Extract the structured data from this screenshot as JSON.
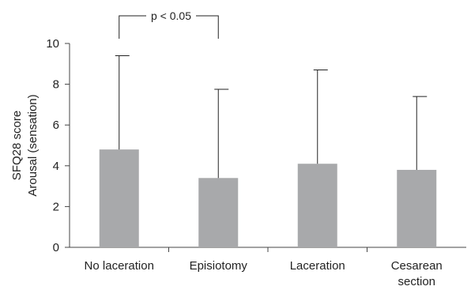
{
  "chart_data": {
    "type": "bar",
    "categories": [
      [
        "No laceration"
      ],
      [
        "Episiotomy"
      ],
      [
        "Laceration"
      ],
      [
        "Cesarean",
        "section"
      ]
    ],
    "values": [
      4.8,
      3.4,
      4.1,
      3.8
    ],
    "error_upper": [
      9.4,
      7.75,
      8.7,
      7.4
    ],
    "ylabel": [
      "SFQ28 score",
      "Arousal (sensation)"
    ],
    "ylim": [
      0,
      10
    ],
    "yticks": [
      0,
      2,
      4,
      6,
      8,
      10
    ],
    "bar_color": "#a8a9ab",
    "grid": false,
    "annotation": {
      "text": "p < 0.05",
      "from_category": 0,
      "to_category": 1
    }
  }
}
